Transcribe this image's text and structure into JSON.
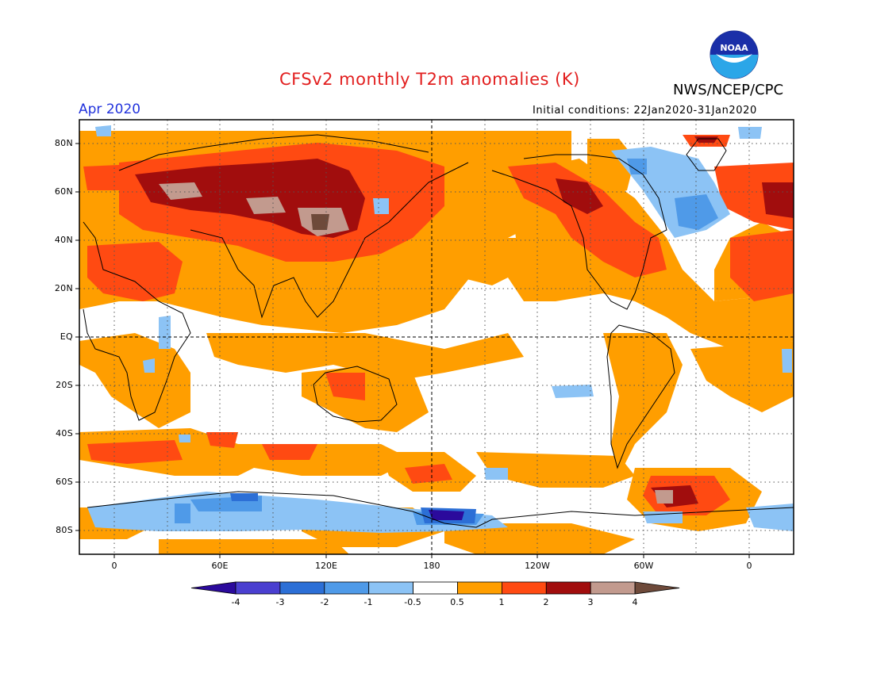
{
  "header": {
    "title": "CFSv2 monthly T2m anomalies (K)",
    "organization": "NWS/NCEP/CPC",
    "month": "Apr 2020",
    "initial_conditions": "Initial conditions: 22Jan2020-31Jan2020",
    "logo_text": "NOAA"
  },
  "map": {
    "projection": "cylindrical equidistant, centered 180",
    "lat_labels": [
      "80N",
      "60N",
      "40N",
      "20N",
      "EQ",
      "20S",
      "40S",
      "60S",
      "80S"
    ],
    "lon_labels": [
      "0",
      "60E",
      "120E",
      "180",
      "120W",
      "60W",
      "0"
    ]
  },
  "colorbar": {
    "labels": [
      "-4",
      "-3",
      "-2",
      "-1",
      "-0.5",
      "0.5",
      "1",
      "2",
      "3",
      "4"
    ],
    "colors": [
      "#2b0a9c",
      "#4a3fd0",
      "#2c6fd6",
      "#4f9ae8",
      "#8cc3f5",
      "#ffffff",
      "#ff9e00",
      "#ff4a12",
      "#a10d0d",
      "#c29a8e",
      "#6e4a3a"
    ]
  },
  "colors": {
    "title": "#e21f1f",
    "month": "#2233dd",
    "warm_1": "#ff9e00",
    "warm_2": "#ff4a12",
    "warm_3": "#a10d0d",
    "warm_4": "#c29a8e",
    "warm_5": "#6e4a3a",
    "cool_1": "#8cc3f5",
    "cool_2": "#4f9ae8",
    "cool_3": "#2c6fd6",
    "cool_4": "#2b0a9c"
  }
}
